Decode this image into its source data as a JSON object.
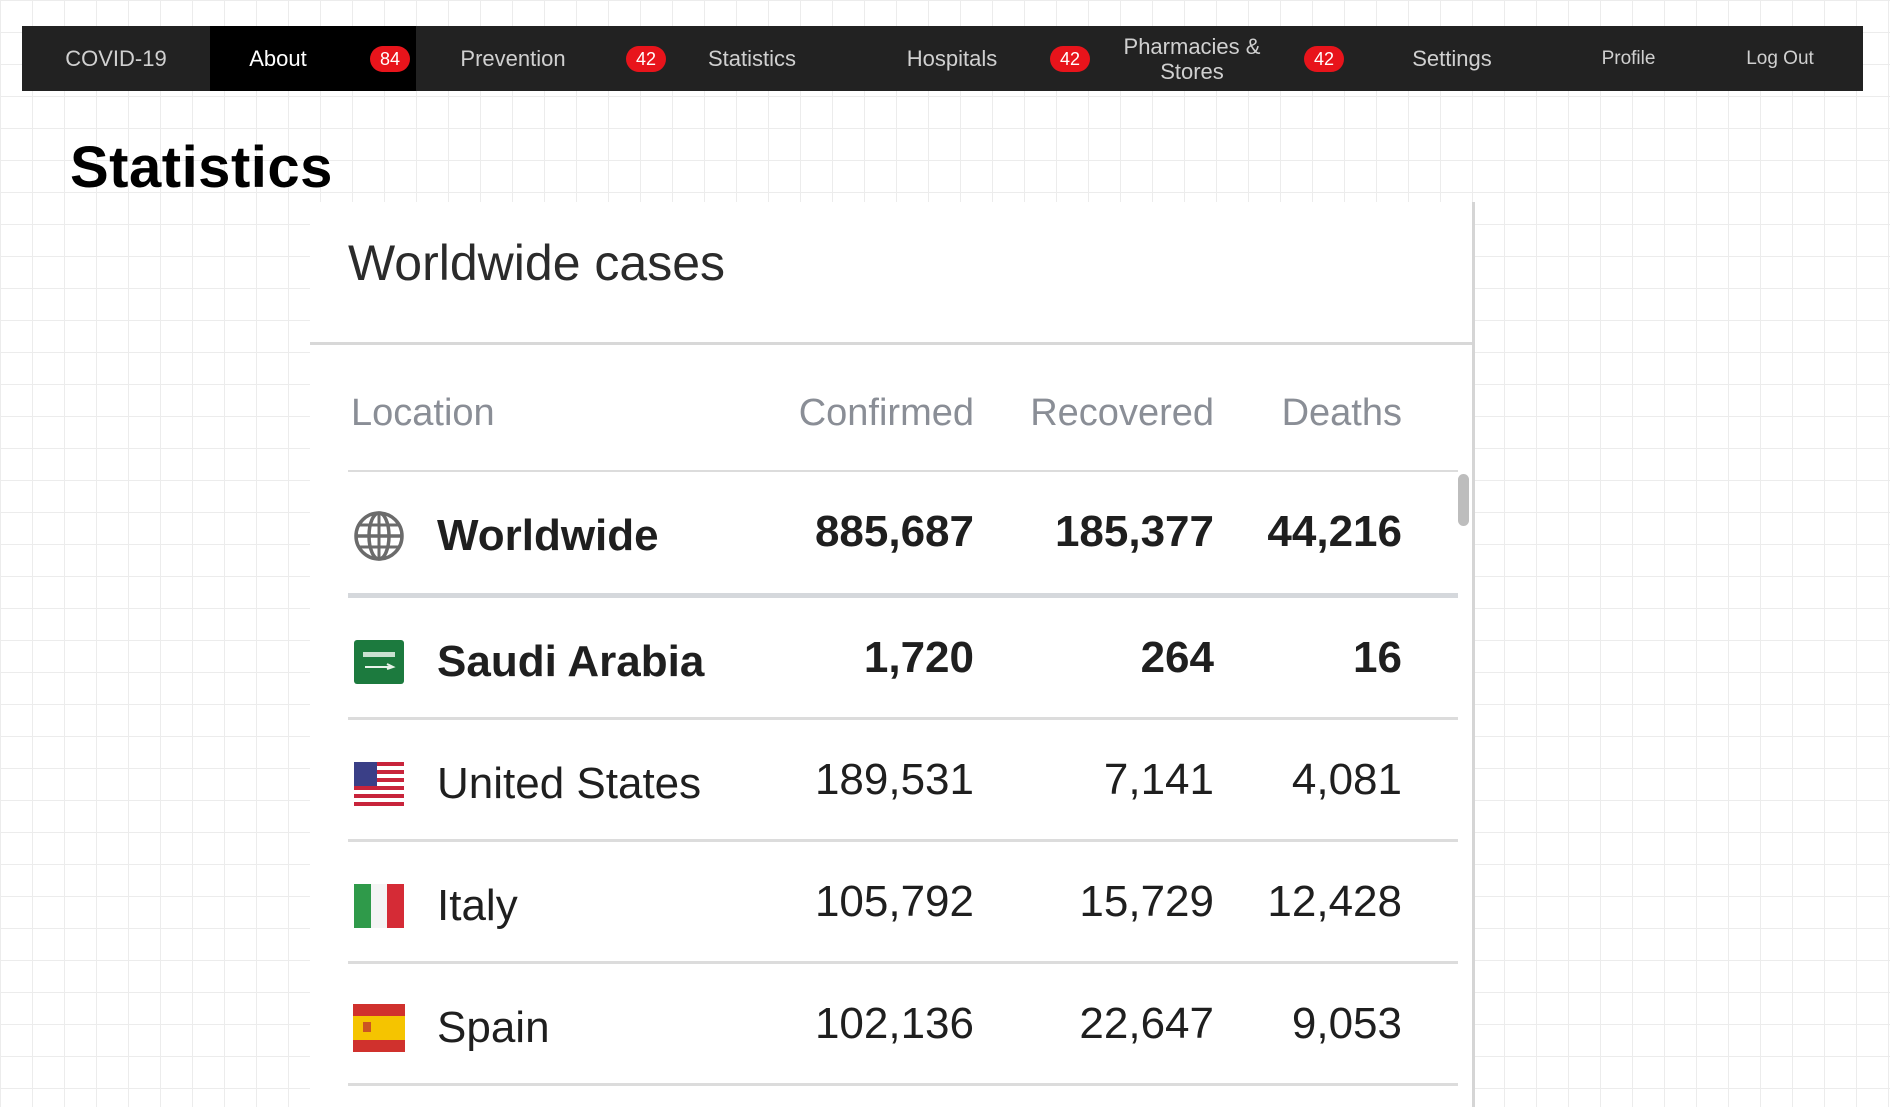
{
  "nav": {
    "items": [
      {
        "label": "COVID-19"
      },
      {
        "label": "About",
        "badge": "84"
      },
      {
        "label": "Prevention",
        "badge": "42"
      },
      {
        "label": "Statistics"
      },
      {
        "label": "Hospitals",
        "badge": "42"
      },
      {
        "label": "Pharmacies & Stores",
        "badge": "42"
      },
      {
        "label": "Settings"
      },
      {
        "label": "Profile"
      },
      {
        "label": "Log Out"
      }
    ],
    "active": "About"
  },
  "page": {
    "title": "Statistics"
  },
  "card": {
    "title": "Worldwide cases",
    "columns": [
      "Location",
      "Confirmed",
      "Recovered",
      "Deaths"
    ],
    "rows": [
      {
        "location": "Worldwide",
        "confirmed": "885,687",
        "recovered": "185,377",
        "deaths": "44,216",
        "icon": "globe-icon"
      },
      {
        "location": "Saudi Arabia",
        "confirmed": "1,720",
        "recovered": "264",
        "deaths": "16",
        "icon": "saudi-arabia-flag-icon"
      },
      {
        "location": "United States",
        "confirmed": "189,531",
        "recovered": "7,141",
        "deaths": "4,081",
        "icon": "united-states-flag-icon"
      },
      {
        "location": "Italy",
        "confirmed": "105,792",
        "recovered": "15,729",
        "deaths": "12,428",
        "icon": "italy-flag-icon"
      },
      {
        "location": "Spain",
        "confirmed": "102,136",
        "recovered": "22,647",
        "deaths": "9,053",
        "icon": "spain-flag-icon"
      }
    ]
  },
  "colors": {
    "nav_bg": "#222222",
    "nav_active": "#000000",
    "badge": "#e8141b",
    "header_text": "#8a8e96"
  }
}
